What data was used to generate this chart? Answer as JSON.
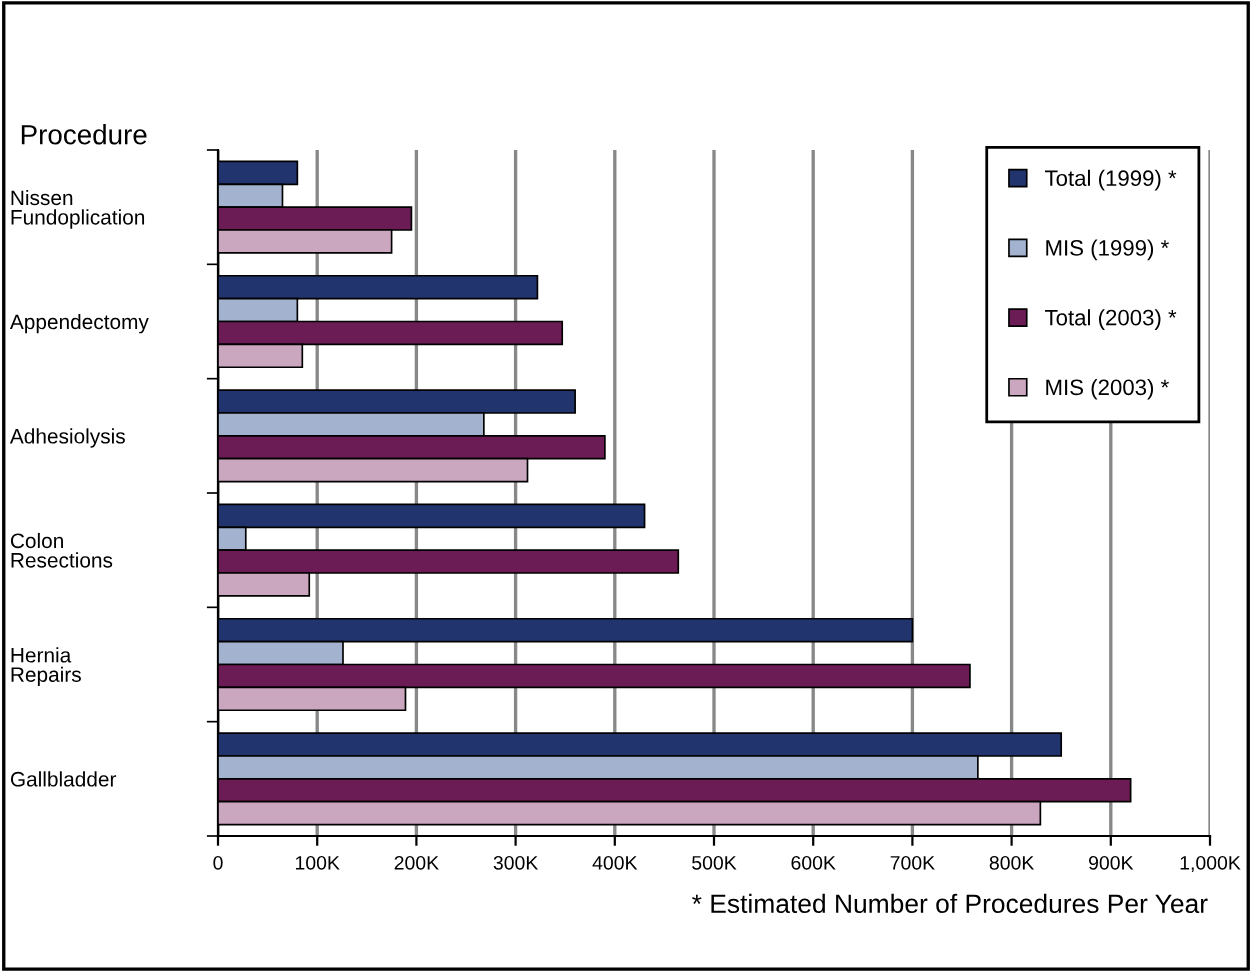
{
  "chart_data": {
    "type": "bar",
    "orientation": "horizontal",
    "ylabel": "Procedure",
    "categories": [
      "Nissen\nFundoplication",
      "Appendectomy",
      "Adhesiolysis",
      "Colon\nResections",
      "Hernia\nRepairs",
      "Gallbladder"
    ],
    "series": [
      {
        "name": "Total (1999) *",
        "color": "#22346e",
        "values": [
          80000,
          322000,
          360000,
          430000,
          700000,
          850000
        ]
      },
      {
        "name": "MIS (1999) *",
        "color": "#a3b3cf",
        "values": [
          65000,
          80000,
          268000,
          28000,
          126000,
          766000
        ]
      },
      {
        "name": "Total (2003) *",
        "color": "#6b1c54",
        "values": [
          195000,
          347000,
          390000,
          464000,
          758000,
          920000
        ]
      },
      {
        "name": "MIS (2003) *",
        "color": "#cba6bf",
        "values": [
          175000,
          85000,
          312000,
          92000,
          189000,
          829000
        ]
      }
    ],
    "xlim": [
      0,
      1000000
    ],
    "xticks": [
      0,
      {
        "value": 100000,
        "label": "100K"
      },
      {
        "value": 200000,
        "label": "200K"
      },
      {
        "value": 300000,
        "label": "300K"
      },
      {
        "value": 400000,
        "label": "400K"
      },
      {
        "value": 500000,
        "label": "500K"
      },
      {
        "value": 600000,
        "label": "600K"
      },
      {
        "value": 700000,
        "label": "700K"
      },
      {
        "value": 800000,
        "label": "800K"
      },
      {
        "value": 900000,
        "label": "900K"
      },
      {
        "value": 1000000,
        "label": "1,000K"
      }
    ],
    "grid": "x",
    "legend": "top right",
    "annotations": [
      "* Estimated Number of Procedures Per Year"
    ]
  }
}
